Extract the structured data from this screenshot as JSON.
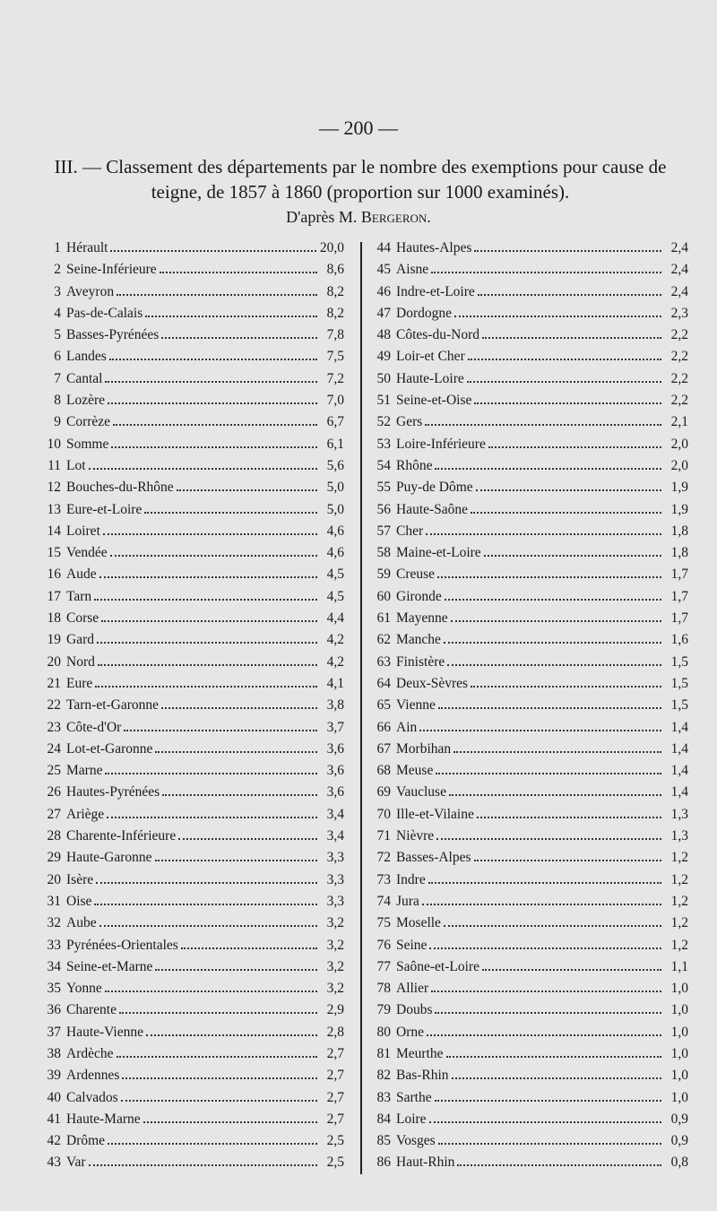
{
  "page_number": "— 200 —",
  "heading": {
    "title": "III. — Classement des départements par le nombre des exemptions pour cause de teigne, de 1857 à 1860 (proportion sur 1000 examinés).",
    "source_prefix": "D'après M.",
    "source_name": "Bergeron."
  },
  "table": {
    "left": [
      [
        "1",
        "Hérault",
        "20,0"
      ],
      [
        "2",
        "Seine-Inférieure",
        "8,6"
      ],
      [
        "3",
        "Aveyron",
        "8,2"
      ],
      [
        "4",
        "Pas-de-Calais",
        "8,2"
      ],
      [
        "5",
        "Basses-Pyrénées",
        "7,8"
      ],
      [
        "6",
        "Landes",
        "7,5"
      ],
      [
        "7",
        "Cantal",
        "7,2"
      ],
      [
        "8",
        "Lozère",
        "7,0"
      ],
      [
        "9",
        "Corrèze",
        "6,7"
      ],
      [
        "10",
        "Somme",
        "6,1"
      ],
      [
        "11",
        "Lot",
        "5,6"
      ],
      [
        "12",
        "Bouches-du-Rhône",
        "5,0"
      ],
      [
        "13",
        "Eure-et-Loire",
        "5,0"
      ],
      [
        "14",
        "Loiret",
        "4,6"
      ],
      [
        "15",
        "Vendée",
        "4,6"
      ],
      [
        "16",
        "Aude",
        "4,5"
      ],
      [
        "17",
        "Tarn",
        "4,5"
      ],
      [
        "18",
        "Corse",
        "4,4"
      ],
      [
        "19",
        "Gard",
        "4,2"
      ],
      [
        "20",
        "Nord",
        "4,2"
      ],
      [
        "21",
        "Eure",
        "4,1"
      ],
      [
        "22",
        "Tarn-et-Garonne",
        "3,8"
      ],
      [
        "23",
        "Côte-d'Or",
        "3,7"
      ],
      [
        "24",
        "Lot-et-Garonne",
        "3,6"
      ],
      [
        "25",
        "Marne",
        "3,6"
      ],
      [
        "26",
        "Hautes-Pyrénées",
        "3,6"
      ],
      [
        "27",
        "Ariège",
        "3,4"
      ],
      [
        "28",
        "Charente-Inférieure",
        "3,4"
      ],
      [
        "29",
        "Haute-Garonne",
        "3,3"
      ],
      [
        "20",
        "Isère",
        "3,3"
      ],
      [
        "31",
        "Oise",
        "3,3"
      ],
      [
        "32",
        "Aube",
        "3,2"
      ],
      [
        "33",
        "Pyrénées-Orientales",
        "3,2"
      ],
      [
        "34",
        "Seine-et-Marne",
        "3,2"
      ],
      [
        "35",
        "Yonne",
        "3,2"
      ],
      [
        "36",
        "Charente",
        "2,9"
      ],
      [
        "37",
        "Haute-Vienne",
        "2,8"
      ],
      [
        "38",
        "Ardèche",
        "2,7"
      ],
      [
        "39",
        "Ardennes",
        "2,7"
      ],
      [
        "40",
        "Calvados",
        "2,7"
      ],
      [
        "41",
        "Haute-Marne",
        "2,7"
      ],
      [
        "42",
        "Drôme",
        "2,5"
      ],
      [
        "43",
        "Var",
        "2,5"
      ]
    ],
    "right": [
      [
        "44",
        "Hautes-Alpes",
        "2,4"
      ],
      [
        "45",
        "Aisne",
        "2,4"
      ],
      [
        "46",
        "Indre-et-Loire",
        "2,4"
      ],
      [
        "47",
        "Dordogne",
        "2,3"
      ],
      [
        "48",
        "Côtes-du-Nord",
        "2,2"
      ],
      [
        "49",
        "Loir-et Cher",
        "2,2"
      ],
      [
        "50",
        "Haute-Loire",
        "2,2"
      ],
      [
        "51",
        "Seine-et-Oise",
        "2,2"
      ],
      [
        "52",
        "Gers",
        "2,1"
      ],
      [
        "53",
        "Loire-Inférieure",
        "2,0"
      ],
      [
        "54",
        "Rhône",
        "2,0"
      ],
      [
        "55",
        "Puy-de Dôme",
        "1,9"
      ],
      [
        "56",
        "Haute-Saône",
        "1,9"
      ],
      [
        "57",
        "Cher",
        "1,8"
      ],
      [
        "58",
        "Maine-et-Loire",
        "1,8"
      ],
      [
        "59",
        "Creuse",
        "1,7"
      ],
      [
        "60",
        "Gironde",
        "1,7"
      ],
      [
        "61",
        "Mayenne",
        "1,7"
      ],
      [
        "62",
        "Manche",
        "1,6"
      ],
      [
        "63",
        "Finistère",
        "1,5"
      ],
      [
        "64",
        "Deux-Sèvres",
        "1,5"
      ],
      [
        "65",
        "Vienne",
        "1,5"
      ],
      [
        "66",
        "Ain",
        "1,4"
      ],
      [
        "67",
        "Morbihan",
        "1,4"
      ],
      [
        "68",
        "Meuse",
        "1,4"
      ],
      [
        "69",
        "Vaucluse",
        "1,4"
      ],
      [
        "70",
        "Ille-et-Vilaine",
        "1,3"
      ],
      [
        "71",
        "Nièvre",
        "1,3"
      ],
      [
        "72",
        "Basses-Alpes",
        "1,2"
      ],
      [
        "73",
        "Indre",
        "1,2"
      ],
      [
        "74",
        "Jura",
        "1,2"
      ],
      [
        "75",
        "Moselle",
        "1,2"
      ],
      [
        "76",
        "Seine",
        "1,2"
      ],
      [
        "77",
        "Saône-et-Loire",
        "1,1"
      ],
      [
        "78",
        "Allier",
        "1,0"
      ],
      [
        "79",
        "Doubs",
        "1,0"
      ],
      [
        "80",
        "Orne",
        "1,0"
      ],
      [
        "81",
        "Meurthe",
        "1,0"
      ],
      [
        "82",
        "Bas-Rhin",
        "1,0"
      ],
      [
        "83",
        "Sarthe",
        "1,0"
      ],
      [
        "84",
        "Loire",
        "0,9"
      ],
      [
        "85",
        "Vosges",
        "0,9"
      ],
      [
        "86",
        "Haut-Rhin",
        "0,8"
      ]
    ]
  }
}
